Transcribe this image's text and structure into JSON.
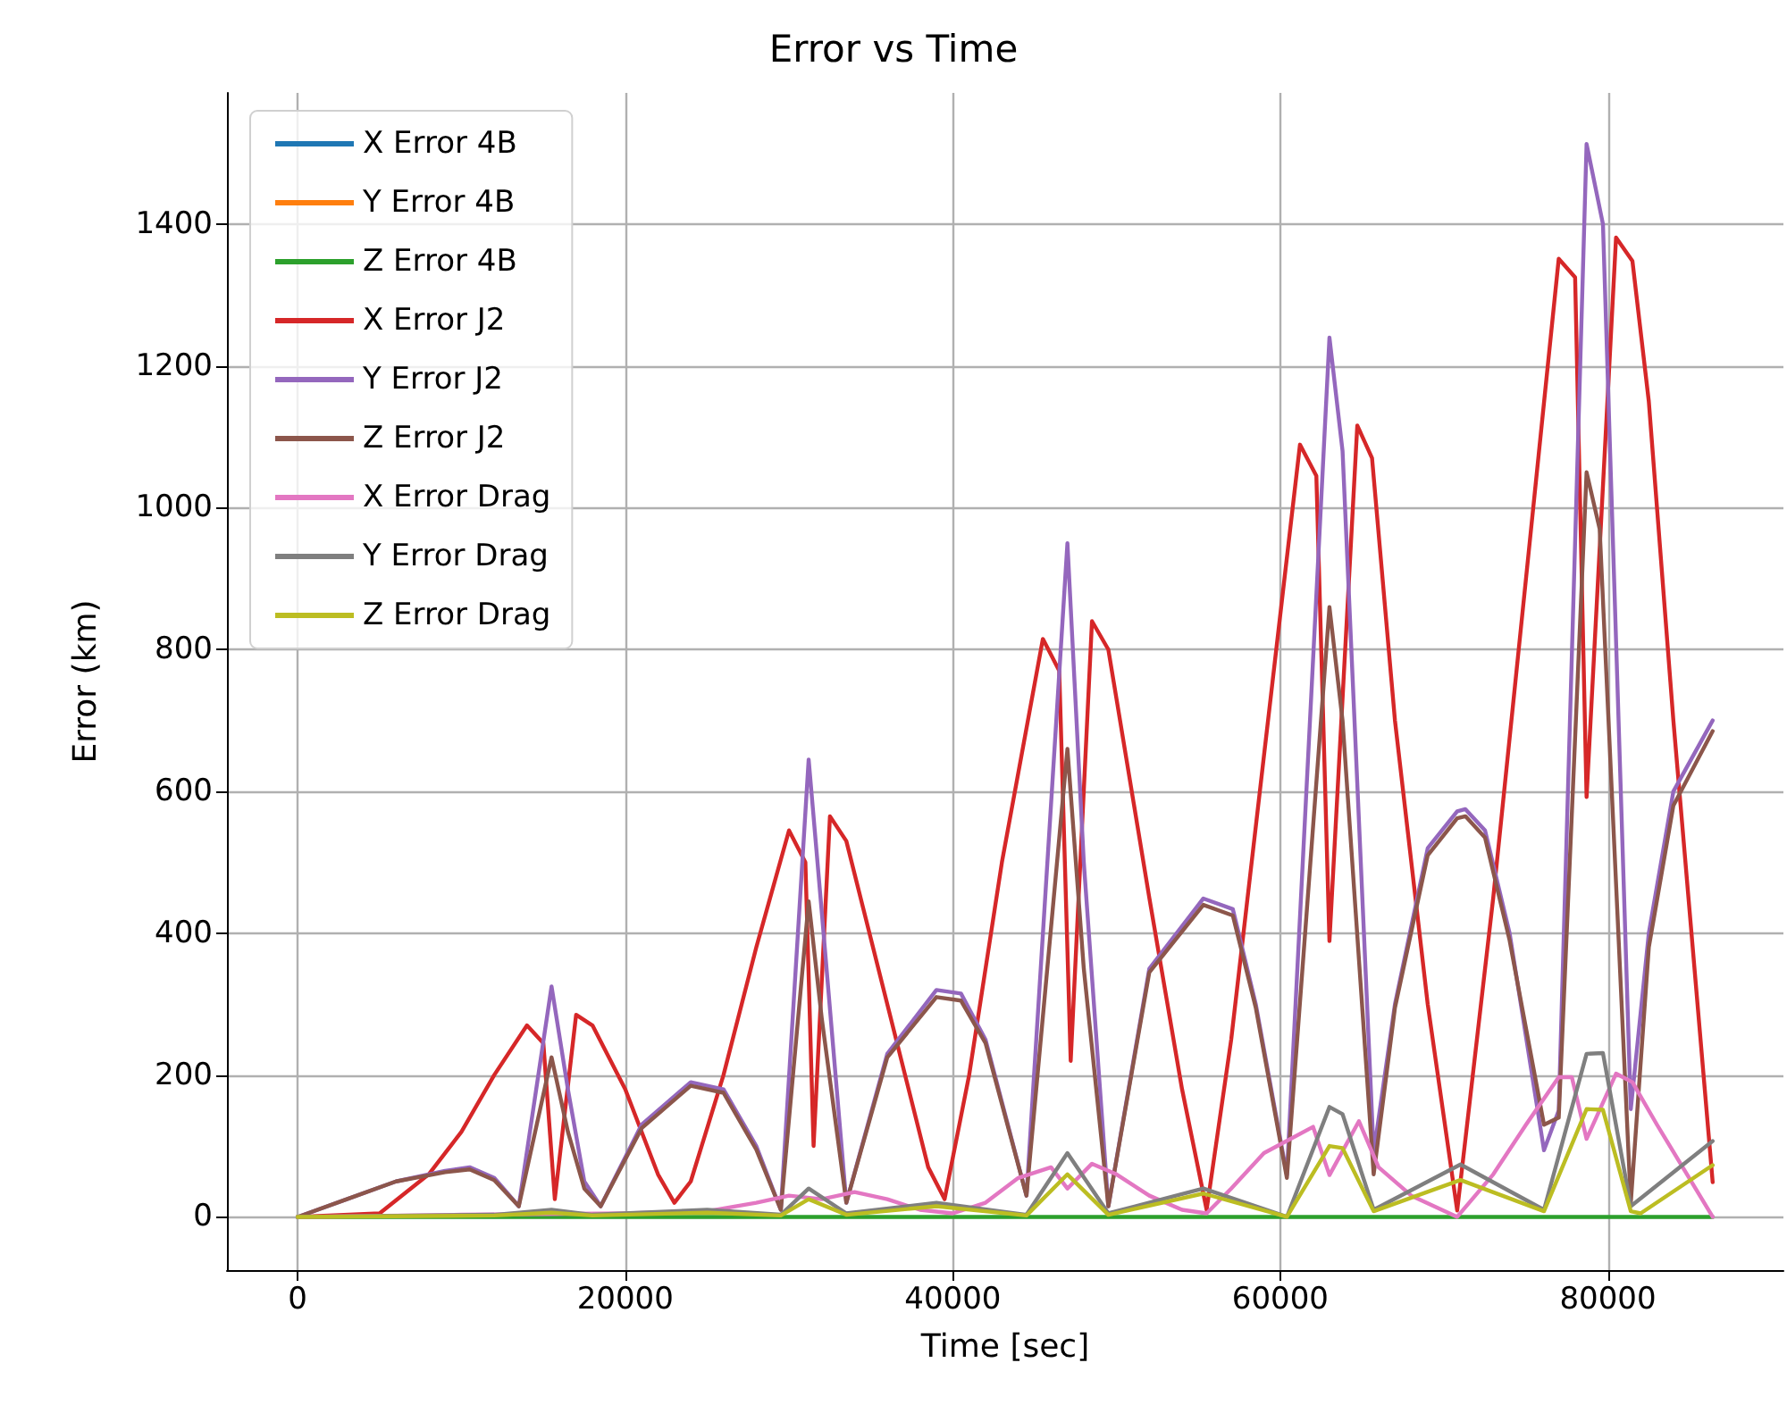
{
  "chart_data": {
    "type": "line",
    "title": "Error vs Time",
    "xlabel": "Time [sec]",
    "ylabel": "Error (km)",
    "xlim": [
      -4320,
      90720
    ],
    "xticks": [
      0,
      20000,
      40000,
      60000,
      80000
    ],
    "ylim": [
      -75,
      1585
    ],
    "yticks": [
      0,
      200,
      400,
      600,
      800,
      1000,
      1200,
      1400
    ],
    "grid": true,
    "legend": "top left",
    "marker": "none",
    "line_style": "solid",
    "series": [
      {
        "name": "X Error 4B",
        "color": "#1f77b4"
      },
      {
        "name": "Y Error 4B",
        "color": "#ff7f0e"
      },
      {
        "name": "Z Error 4B",
        "color": "#2ca02c",
        "x": [
          0,
          21600,
          43200,
          64800,
          86400
        ],
        "values": [
          0,
          0,
          0,
          0,
          0
        ]
      },
      {
        "name": "X Error J2",
        "color": "#d62728",
        "x": [
          0,
          5000,
          8000,
          10000,
          12000,
          14000,
          15000,
          15700,
          17000,
          18000,
          20000,
          22000,
          23000,
          24000,
          26000,
          28000,
          30000,
          31000,
          31500,
          32500,
          33500,
          36000,
          38500,
          39500,
          41000,
          43000,
          45500,
          46500,
          47200,
          48500,
          49500,
          52000,
          54000,
          55500,
          57000,
          59000,
          61200,
          62200,
          63000,
          64700,
          65600,
          67000,
          69000,
          70800,
          73000,
          75000,
          77000,
          78000,
          78700,
          80500,
          81500,
          82500,
          84000,
          86400
        ],
        "values": [
          0,
          5,
          60,
          120,
          200,
          270,
          245,
          25,
          285,
          270,
          180,
          60,
          20,
          50,
          200,
          380,
          545,
          500,
          100,
          565,
          530,
          300,
          70,
          25,
          200,
          500,
          815,
          770,
          220,
          840,
          800,
          450,
          180,
          10,
          250,
          650,
          1089,
          1045,
          389,
          1116,
          1070,
          700,
          300,
          9,
          450,
          900,
          1351,
          1325,
          592,
          1381,
          1348,
          1150,
          700,
          49
        ]
      },
      {
        "name": "Y Error J2",
        "color": "#9467bd",
        "x": [
          0,
          3000,
          6000,
          9000,
          10500,
          12000,
          13500,
          15500,
          16500,
          17500,
          18500,
          21000,
          24000,
          26000,
          28000,
          29500,
          31200,
          32000,
          33500,
          36000,
          39000,
          40500,
          42000,
          44500,
          47000,
          48000,
          49500,
          52000,
          55300,
          57100,
          58500,
          60400,
          63000,
          63800,
          65700,
          67000,
          69000,
          70800,
          71300,
          72500,
          74000,
          76100,
          77000,
          78700,
          79700,
          81400,
          82500,
          84000,
          86400
        ],
        "values": [
          0,
          25,
          50,
          65,
          70,
          55,
          15,
          325,
          180,
          50,
          15,
          130,
          190,
          180,
          100,
          10,
          645,
          430,
          20,
          230,
          320,
          315,
          250,
          30,
          950,
          500,
          15,
          350,
          449,
          434,
          300,
          59,
          1240,
          1080,
          90,
          300,
          520,
          572,
          575,
          545,
          400,
          94,
          150,
          1513,
          1400,
          152,
          400,
          600,
          700
        ]
      },
      {
        "name": "Z Error J2",
        "color": "#8c564b",
        "x": [
          0,
          3000,
          6000,
          9000,
          10500,
          12000,
          13500,
          15500,
          16500,
          17500,
          18500,
          21000,
          24000,
          26000,
          28000,
          29500,
          31200,
          32000,
          33500,
          36000,
          39000,
          40500,
          42000,
          44500,
          47000,
          48000,
          49500,
          52000,
          55300,
          57100,
          58500,
          60400,
          63000,
          63800,
          65700,
          67000,
          69000,
          70800,
          71300,
          72500,
          74000,
          76100,
          77000,
          78700,
          79500,
          81400,
          82500,
          84000,
          86400
        ],
        "values": [
          0,
          25,
          50,
          63,
          67,
          52,
          15,
          225,
          120,
          40,
          15,
          125,
          185,
          175,
          95,
          10,
          445,
          280,
          20,
          225,
          310,
          305,
          245,
          30,
          660,
          350,
          15,
          345,
          440,
          425,
          295,
          55,
          860,
          700,
          60,
          295,
          510,
          562,
          565,
          535,
          390,
          130,
          140,
          1050,
          970,
          20,
          380,
          580,
          685
        ]
      },
      {
        "name": "X Error Drag",
        "color": "#e377c2",
        "x": [
          0,
          10000,
          20000,
          25000,
          28000,
          30000,
          32000,
          34000,
          36000,
          38000,
          40000,
          42000,
          44000,
          46000,
          47000,
          48500,
          50000,
          52000,
          54000,
          55500,
          57000,
          59000,
          62000,
          63000,
          64800,
          66000,
          68000,
          70800,
          73000,
          75000,
          77000,
          77800,
          78700,
          80500,
          81500,
          83000,
          86400
        ],
        "values": [
          0,
          3,
          5,
          8,
          20,
          30,
          25,
          35,
          25,
          10,
          5,
          20,
          55,
          70,
          40,
          75,
          60,
          30,
          10,
          5,
          40,
          90,
          127,
          59,
          135,
          70,
          30,
          0,
          60,
          130,
          197,
          197,
          110,
          202,
          190,
          130,
          0
        ]
      },
      {
        "name": "Y Error Drag",
        "color": "#7f7f7f",
        "x": [
          0,
          12000,
          15500,
          18000,
          25000,
          29500,
          31200,
          33500,
          39000,
          44500,
          47000,
          49500,
          55300,
          60400,
          63000,
          63800,
          65700,
          71000,
          76100,
          78700,
          79700,
          81400,
          86400
        ],
        "values": [
          0,
          3,
          10,
          3,
          10,
          3,
          40,
          5,
          20,
          3,
          90,
          5,
          40,
          0,
          155,
          145,
          10,
          74,
          10,
          230,
          231,
          15,
          107
        ]
      },
      {
        "name": "Z Error Drag",
        "color": "#bcbd22",
        "x": [
          0,
          12000,
          15500,
          18000,
          25000,
          29500,
          31200,
          33500,
          39000,
          44500,
          47000,
          49500,
          55300,
          60400,
          63000,
          63800,
          65700,
          71000,
          76100,
          78700,
          79700,
          81400,
          82000,
          86400
        ],
        "values": [
          0,
          2,
          6,
          2,
          6,
          2,
          25,
          3,
          15,
          2,
          60,
          3,
          33,
          0,
          100,
          97,
          8,
          52,
          8,
          152,
          151,
          8,
          5,
          73
        ]
      }
    ]
  }
}
